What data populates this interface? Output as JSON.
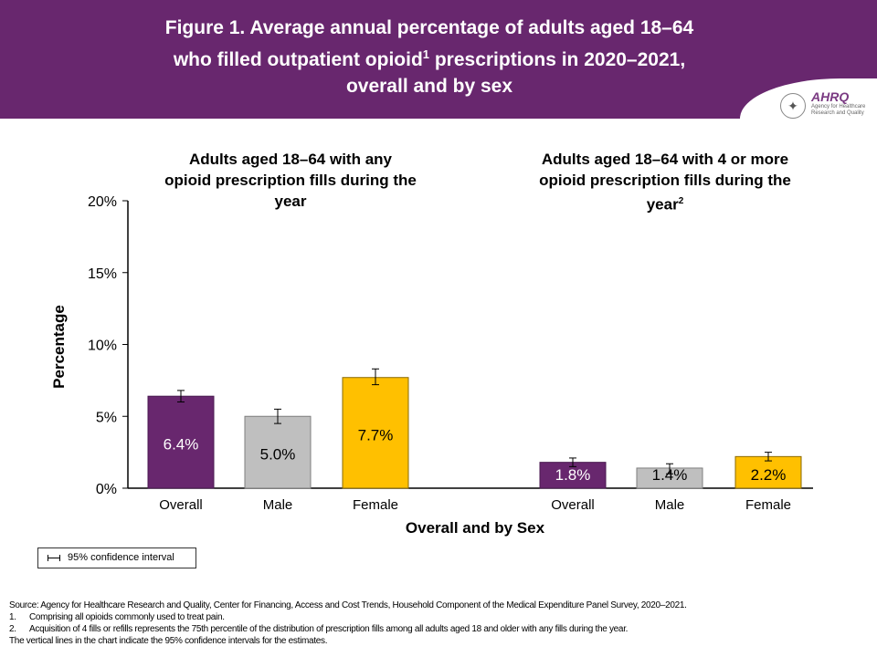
{
  "header": {
    "title_line1": "Figure 1. Average annual percentage of adults aged 18–64",
    "title_line2a": "who filled outpatient opioid",
    "title_sup": "1",
    "title_line2b": " prescriptions in 2020–2021,",
    "title_line3": "overall and by sex",
    "logo_text": "AHRQ",
    "logo_subtext": "Agency for Healthcare Research and Quality"
  },
  "colors": {
    "header": "#68276e",
    "overall": "#68276e",
    "male": "#bfbfbf",
    "female": "#ffc000"
  },
  "chart_data": {
    "type": "bar",
    "ylabel": "Percentage",
    "xlabel": "Overall and by Sex",
    "ylim": [
      0,
      20
    ],
    "yticks": [
      "0%",
      "5%",
      "10%",
      "15%",
      "20%"
    ],
    "ytick_values": [
      0,
      5,
      10,
      15,
      20
    ],
    "categories": [
      "Overall",
      "Male",
      "Female"
    ],
    "panels": [
      {
        "title_line1": "Adults aged 18–64 with any",
        "title_line2": "opioid prescription fills during the",
        "title_line3": "year",
        "title_sup": "",
        "values": [
          6.4,
          5.0,
          7.7
        ],
        "labels": [
          "6.4%",
          "5.0%",
          "7.7%"
        ],
        "ci_low": [
          6.0,
          4.5,
          7.2
        ],
        "ci_high": [
          6.8,
          5.5,
          8.3
        ]
      },
      {
        "title_line1": "Adults aged 18–64 with 4 or more",
        "title_line2": "opioid prescription fills during the",
        "title_line3": "year",
        "title_sup": "2",
        "values": [
          1.8,
          1.4,
          2.2
        ],
        "labels": [
          "1.8%",
          "1.4%",
          "2.2%"
        ],
        "ci_low": [
          1.5,
          1.0,
          1.9
        ],
        "ci_high": [
          2.1,
          1.7,
          2.5
        ]
      }
    ],
    "legend": "95% confidence interval",
    "legend_position": "bottom-left",
    "grid": false
  },
  "notes": {
    "source": "Source: Agency for Healthcare Research and Quality, Center for Financing, Access and Cost Trends, Household Component of the Medical Expenditure Panel Survey, 2020–2021.",
    "n1_num": "1.",
    "n1": "Comprising all opioids commonly used to treat pain.",
    "n2_num": "2.",
    "n2": "Acquisition of 4 fills or refills represents the 75th percentile of the distribution of prescription fills among all adults aged 18 and older with any fills during the year.",
    "ci": "The vertical lines in the chart indicate the 95% confidence intervals for the estimates."
  }
}
